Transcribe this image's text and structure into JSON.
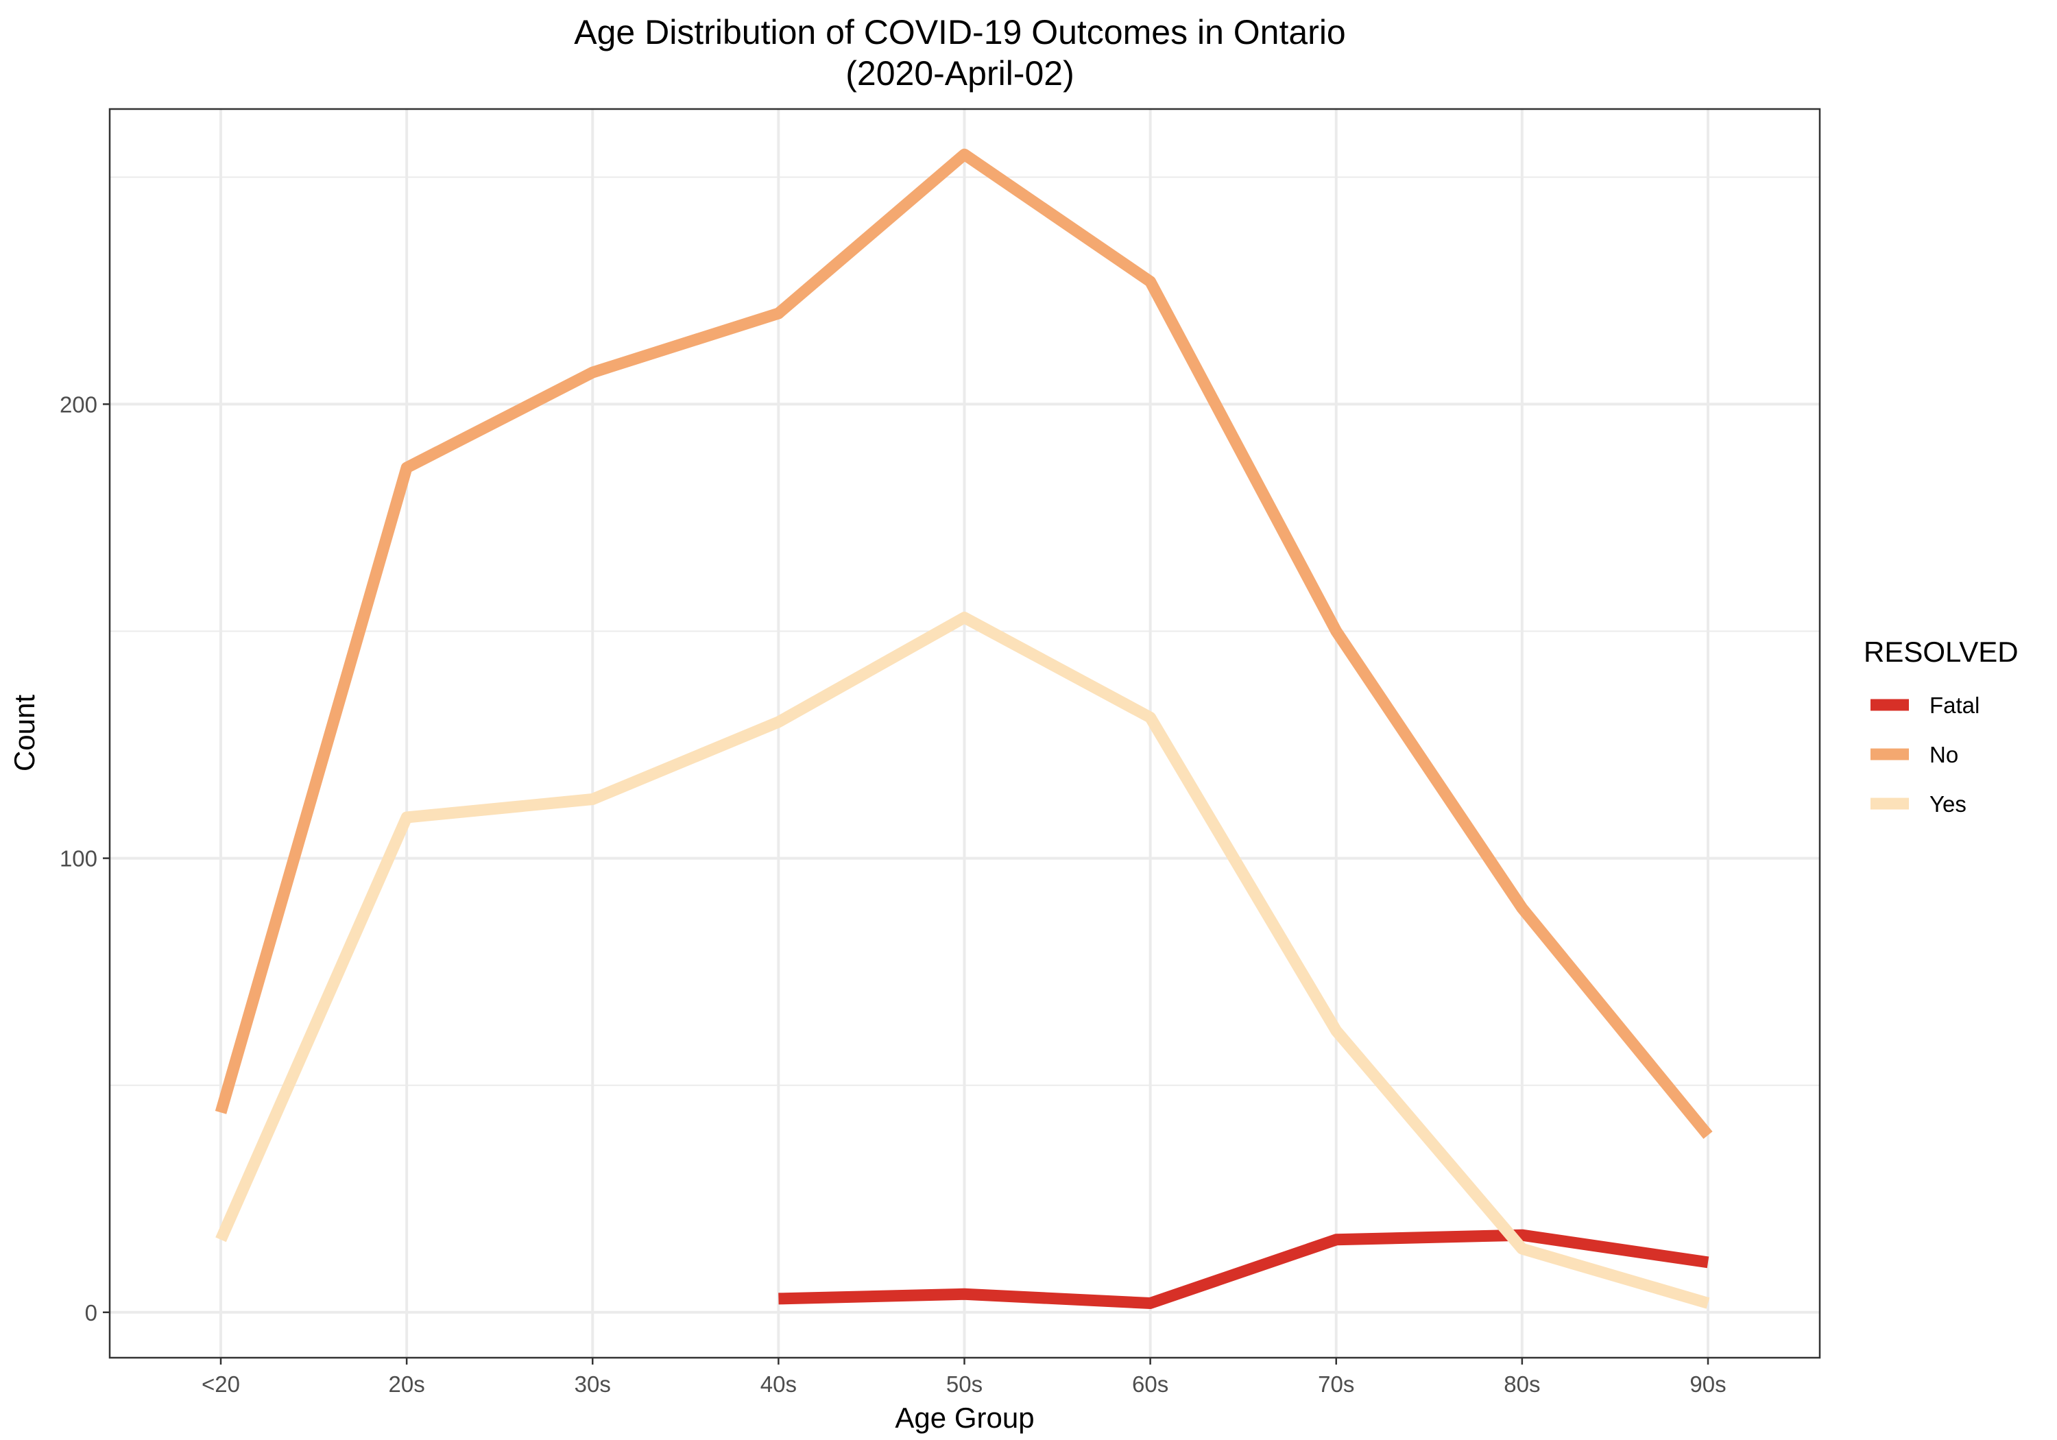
{
  "chart_data": {
    "type": "line",
    "title": "Age Distribution of COVID-19 Outcomes in Ontario",
    "subtitle": "(2020-April-02)",
    "xlabel": "Age Group",
    "ylabel": "Count",
    "categories": [
      "<20",
      "20s",
      "30s",
      "40s",
      "50s",
      "60s",
      "70s",
      "80s",
      "90s"
    ],
    "ylim": [
      -10,
      265
    ],
    "yticks": [
      0,
      100,
      200
    ],
    "grid": true,
    "legend": {
      "title": "RESOLVED",
      "position": "right"
    },
    "series": [
      {
        "name": "Fatal",
        "color": "#d73027",
        "values": [
          null,
          null,
          null,
          3,
          4,
          2,
          16,
          17,
          11
        ]
      },
      {
        "name": "No",
        "color": "#f4a870",
        "values": [
          44,
          186,
          207,
          220,
          255,
          227,
          150,
          89,
          39
        ]
      },
      {
        "name": "Yes",
        "color": "#fce1b9",
        "values": [
          16,
          109,
          113,
          130,
          153,
          131,
          62,
          14,
          2
        ]
      }
    ]
  }
}
